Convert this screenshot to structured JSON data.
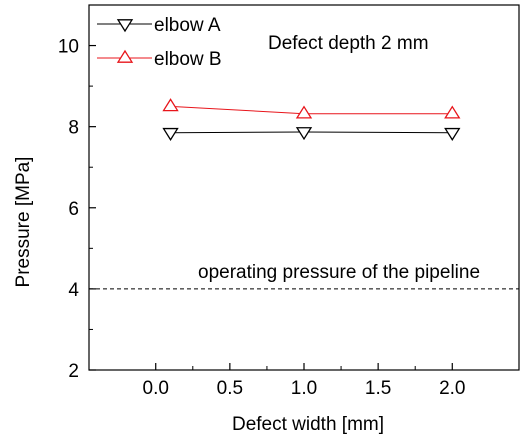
{
  "chart_data": {
    "type": "line",
    "xlabel": "Defect width [mm]",
    "ylabel": "Pressure [MPa]",
    "xlim": [
      -0.45,
      2.45
    ],
    "ylim": [
      2,
      11
    ],
    "xticks": [
      0.0,
      0.5,
      1.0,
      1.5,
      2.0
    ],
    "xtick_labels": [
      "0.0",
      "0.5",
      "1.0",
      "1.5",
      "2.0"
    ],
    "yticks": [
      2,
      4,
      6,
      8,
      10
    ],
    "ytick_labels": [
      "2",
      "4",
      "6",
      "8",
      "10"
    ],
    "series": [
      {
        "name": "elbow A",
        "x": [
          0.1,
          1.0,
          2.0
        ],
        "y": [
          7.85,
          7.87,
          7.85
        ],
        "color": "#000000",
        "marker": "triangle-down"
      },
      {
        "name": "elbow B",
        "x": [
          0.1,
          1.0,
          2.0
        ],
        "y": [
          8.5,
          8.32,
          8.32
        ],
        "color": "#e8151b",
        "marker": "triangle-up"
      }
    ],
    "annotations": [
      {
        "text": "Defect depth 2 mm"
      },
      {
        "text": "operating pressure of the pipeline",
        "y": 4
      }
    ],
    "reference_line": {
      "y": 4,
      "style": "dashed"
    },
    "legend_position": "top-left",
    "grid": false
  }
}
